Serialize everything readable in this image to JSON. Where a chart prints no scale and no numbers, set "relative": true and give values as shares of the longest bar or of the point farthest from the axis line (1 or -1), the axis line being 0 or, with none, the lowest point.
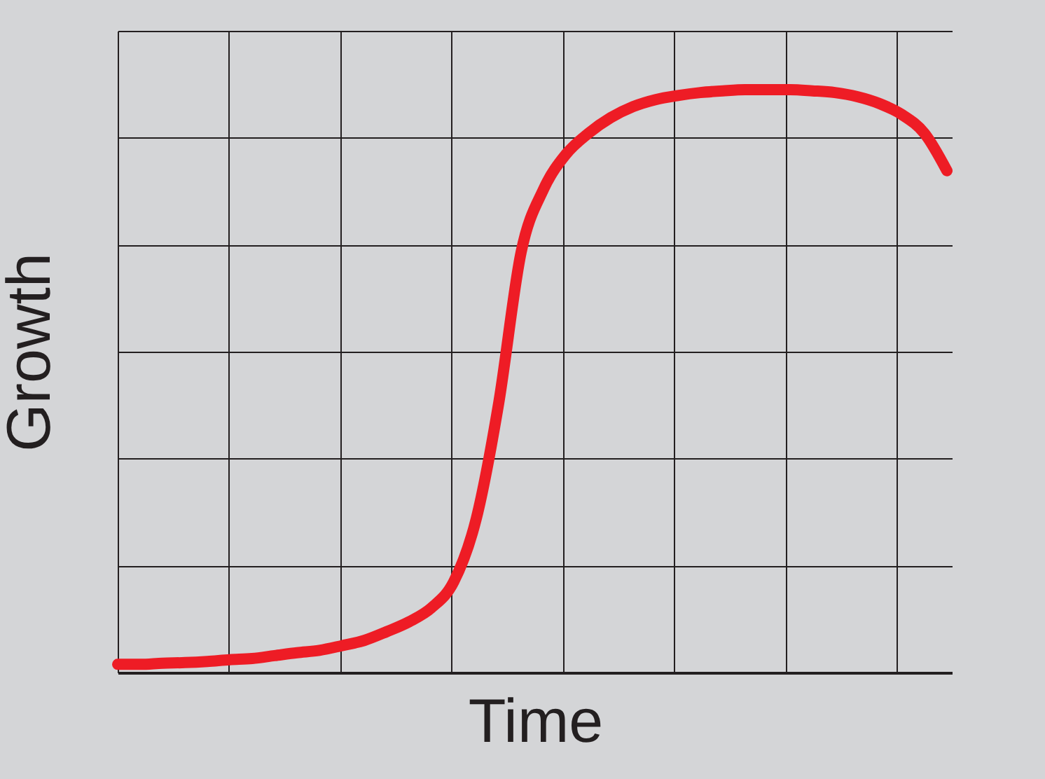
{
  "chart_data": {
    "type": "line",
    "xlabel": "Time",
    "ylabel": "Growth",
    "relative": true,
    "grid": true,
    "line_style": "solid",
    "categories": [
      null,
      null,
      null,
      null,
      null,
      null,
      null,
      null,
      null,
      null,
      null,
      null,
      null,
      null,
      null,
      null,
      null,
      null,
      null,
      null,
      null,
      null,
      null,
      null,
      null,
      null,
      null,
      null,
      null,
      null,
      null,
      null,
      null,
      null,
      null,
      null,
      null,
      null
    ],
    "series": [
      {
        "color": "#ee1c25",
        "values": [
          0.014,
          0.014,
          0.016,
          0.017,
          0.019,
          0.022,
          0.024,
          0.029,
          0.034,
          0.038,
          0.046,
          0.055,
          0.07,
          0.087,
          0.111,
          0.156,
          0.264,
          0.462,
          0.721,
          0.829,
          0.889,
          0.925,
          0.952,
          0.971,
          0.983,
          0.99,
          0.995,
          0.998,
          1,
          1,
          1,
          0.998,
          0.995,
          0.988,
          0.976,
          0.957,
          0.925,
          0.861
        ]
      }
    ]
  }
}
